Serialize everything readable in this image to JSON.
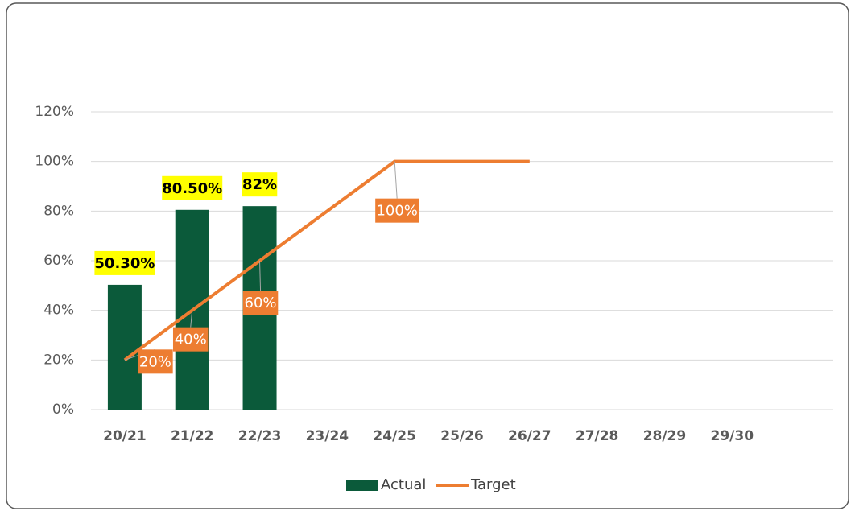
{
  "chart_data": {
    "type": "bar-line",
    "categories": [
      "20/21",
      "21/22",
      "22/23",
      "23/24",
      "24/25",
      "25/26",
      "26/27",
      "27/28",
      "28/29",
      "29/30",
      null
    ],
    "series": [
      {
        "name": "Actual",
        "type": "bar",
        "color": "#0b5a3a",
        "values": [
          50.3,
          80.5,
          82,
          null,
          null,
          null,
          null,
          null,
          null,
          null,
          null
        ],
        "value_labels": [
          "50.30%",
          "80.50%",
          "82%",
          null,
          null,
          null,
          null,
          null,
          null,
          null,
          null
        ]
      },
      {
        "name": "Target",
        "type": "line",
        "color": "#ed7d31",
        "values": [
          20,
          40,
          60,
          80,
          100,
          100,
          100,
          null,
          null,
          null,
          null
        ],
        "value_labels": [
          "20%",
          "40%",
          "60%",
          null,
          "100%",
          null,
          null,
          null,
          null,
          null,
          null
        ]
      }
    ],
    "ylim": [
      0,
      120
    ],
    "yticks": [
      {
        "value": 0,
        "label": "0%"
      },
      {
        "value": 20,
        "label": "20%"
      },
      {
        "value": 40,
        "label": "40%"
      },
      {
        "value": 60,
        "label": "60%"
      },
      {
        "value": 80,
        "label": "80%"
      },
      {
        "value": 100,
        "label": "100%"
      },
      {
        "value": 120,
        "label": "120%"
      }
    ],
    "grid": true,
    "legend": "bottom"
  }
}
